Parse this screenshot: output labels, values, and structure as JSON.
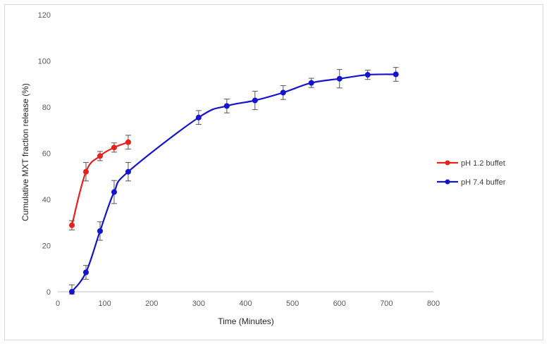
{
  "chart_data": {
    "type": "line",
    "title": "",
    "xlabel": "Time (Minutes)",
    "ylabel": "Cumulative MXT fraction release (%)",
    "xlim": [
      0,
      800
    ],
    "ylim": [
      0,
      120
    ],
    "xticks": [
      0,
      100,
      200,
      300,
      400,
      500,
      600,
      700,
      800
    ],
    "yticks": [
      0,
      20,
      40,
      60,
      80,
      100,
      120
    ],
    "grid": false,
    "legend_position": "right",
    "series": [
      {
        "name": "pH 1.2 buffet",
        "color": "#e8201e",
        "x": [
          30,
          60,
          90,
          120,
          150
        ],
        "y": [
          28.8,
          52.0,
          58.8,
          62.5,
          64.8
        ],
        "err": [
          2.0,
          4.0,
          2.0,
          2.0,
          3.0
        ]
      },
      {
        "name": "pH 7.4 buffer",
        "color": "#1414cc",
        "x": [
          30,
          60,
          90,
          120,
          150,
          300,
          360,
          420,
          480,
          540,
          600,
          660,
          720
        ],
        "y": [
          0.0,
          8.4,
          26.3,
          43.2,
          52.0,
          75.5,
          80.5,
          82.9,
          86.3,
          90.5,
          92.3,
          94.0,
          94.2
        ],
        "err": [
          3.0,
          3.0,
          4.0,
          5.0,
          4.0,
          3.0,
          3.0,
          4.0,
          3.0,
          2.0,
          4.0,
          2.0,
          3.0
        ]
      }
    ]
  }
}
